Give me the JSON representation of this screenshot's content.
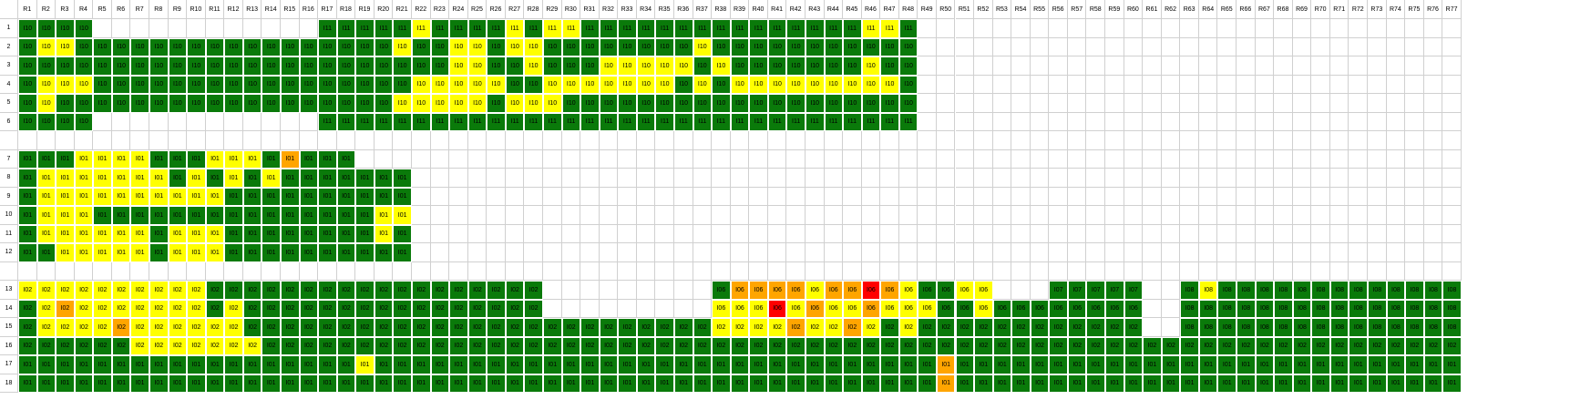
{
  "colors": {
    "G": "#0a7a0a",
    "Y": "#ffff00",
    "O": "#ffa500",
    "R": "#ff0000"
  },
  "columns": [
    "R1",
    "R2",
    "R3",
    "R4",
    "R5",
    "R6",
    "R7",
    "R8",
    "R9",
    "R10",
    "R11",
    "R12",
    "R13",
    "R14",
    "R15",
    "R16",
    "R17",
    "R18",
    "R19",
    "R20",
    "R21",
    "R22",
    "R23",
    "R24",
    "R25",
    "R26",
    "R27",
    "R28",
    "R29",
    "R30",
    "R31",
    "R32",
    "R33",
    "R34",
    "R35",
    "R36",
    "R37",
    "R38",
    "R39",
    "R40",
    "R41",
    "R42",
    "R43",
    "R44",
    "R45",
    "R46",
    "R47",
    "R48",
    "R49",
    "R50",
    "R51",
    "R52",
    "R53",
    "R54",
    "R55",
    "R56",
    "R57",
    "R58",
    "R59",
    "R60",
    "R61",
    "R62",
    "R63",
    "R64",
    "R65",
    "R66",
    "R67",
    "R68",
    "R69",
    "R70",
    "R71",
    "R72",
    "R73",
    "R74",
    "R75",
    "R76",
    "R77"
  ],
  "rows": [
    {
      "label": "1",
      "segments": [
        {
          "start": 1,
          "end": 4,
          "code": "I10",
          "colors": "GGGG"
        },
        {
          "start": 17,
          "end": 48,
          "code": "I11",
          "colors": "GGGGGYGGGGYGYYGGGGGGGGGGGGGGGYYG"
        }
      ]
    },
    {
      "label": "2",
      "segments": [
        {
          "start": 1,
          "end": 48,
          "code": "I10",
          "colors": "GYYGGGGGGGGGGGGGGGGGYGGYYGYYGGGGGGGGYGGGGGGGGGGG"
        }
      ]
    },
    {
      "label": "3",
      "segments": [
        {
          "start": 1,
          "end": 48,
          "code": "I10",
          "colors": "GGGGGGGGGGGGGGGGGGGGGGGYYGGYGGGYYYYYGYGGGGGGGYGG"
        }
      ]
    },
    {
      "label": "4",
      "segments": [
        {
          "start": 1,
          "end": 48,
          "code": "I10",
          "colors": "GYYYGGGGGGGGGGGGGGGGGYYYYYGGYYYYYYYGYGYYYYYYYYYG"
        }
      ]
    },
    {
      "label": "5",
      "segments": [
        {
          "start": 1,
          "end": 48,
          "code": "I10",
          "colors": "GYGGGGGGGGGGGGGGGGGGYYYYYGYYYGGGGGGGGGGGGGGGGGGG"
        }
      ]
    },
    {
      "label": "6",
      "segments": [
        {
          "start": 1,
          "end": 4,
          "code": "I10",
          "colors": "GGGG"
        },
        {
          "start": 17,
          "end": 48,
          "code": "I11",
          "colors": "GGGGGGGGGGGGGGGGGGGGGGGGGGGGGGGG"
        }
      ]
    },
    {
      "label": "",
      "segments": []
    },
    {
      "label": "7",
      "segments": [
        {
          "start": 1,
          "end": 18,
          "code": "I01",
          "colors": "GGGYYYYGGGYYYGOGGG"
        }
      ]
    },
    {
      "label": "8",
      "segments": [
        {
          "start": 1,
          "end": 21,
          "code": "I01",
          "colors": "GYYYYYYYGYGYGYGGGGGGG"
        }
      ]
    },
    {
      "label": "9",
      "segments": [
        {
          "start": 1,
          "end": 21,
          "code": "I01",
          "colors": "GYYYYYYYYYYGGGGGGGGGG"
        }
      ]
    },
    {
      "label": "10",
      "segments": [
        {
          "start": 1,
          "end": 21,
          "code": "I01",
          "colors": "GYYYGGGGGGGGGGGGGGGYY"
        }
      ]
    },
    {
      "label": "11",
      "segments": [
        {
          "start": 1,
          "end": 21,
          "code": "I01",
          "colors": "GYYYYYYGYYYGGGGGGGGYG"
        }
      ]
    },
    {
      "label": "12",
      "segments": [
        {
          "start": 1,
          "end": 21,
          "code": "I01",
          "colors": "GGYYYYYGYYYGGGGGGGGGG"
        }
      ]
    },
    {
      "label": "",
      "segments": []
    },
    {
      "label": "13",
      "segments": [
        {
          "start": 1,
          "end": 28,
          "code": "I02",
          "colors": "YYYYYYYYYYGGGGGGGGGGGGGGGGGG"
        },
        {
          "start": 38,
          "end": 52,
          "code": "I06",
          "colors": "GOOOOYOOROYGGYY"
        },
        {
          "start": 56,
          "end": 60,
          "code": "I07",
          "colors": "GGGGG"
        },
        {
          "start": 63,
          "end": 77,
          "code": "I08",
          "colors": "GYGGGGGGGGGGGGG"
        }
      ]
    },
    {
      "label": "14",
      "segments": [
        {
          "start": 1,
          "end": 28,
          "code": "I02",
          "colors": "GYOYYYYYYYGYGGGGGGGGGGGGGGGG"
        },
        {
          "start": 38,
          "end": 60,
          "code": "I06",
          "colors": "YYYRYOYYOYYYGGYGGGGGGGG"
        },
        {
          "start": 63,
          "end": 77,
          "code": "I08",
          "colors": "GGGGGGGGGGGGGGG"
        }
      ]
    },
    {
      "label": "15",
      "segments": [
        {
          "start": 1,
          "end": 60,
          "code": "I02",
          "colors": "GYYYYOYYYYYYGGGGGGGGGGGGGGGGGGGGGGGGGYYYYOYYOYGYGGGGGGGGGGGG"
        },
        {
          "start": 63,
          "end": 77,
          "code": "I08",
          "colors": "GGGGGGGGGGGGGGG"
        }
      ]
    },
    {
      "label": "16",
      "segments": [
        {
          "start": 1,
          "end": 77,
          "code": "I02",
          "colors": "GGGGGGYYYYYYYGGGGGGGGGGGGGGGGGGGGGGGGGGGGGGGGGGGGGGGGGGGGGGGGGGGGGGGGGGGGGGGG"
        }
      ]
    },
    {
      "label": "17",
      "segments": [
        {
          "start": 1,
          "end": 77,
          "code": "I01",
          "colors": "GGGGGGGGGGGGGGGGGGYGGGGGGGGGGGGGGGGGGGGGGGGGGGGGGOGGGGGGGGGGGGGGGGGGGGGGGGGGG"
        }
      ]
    },
    {
      "label": "18",
      "segments": [
        {
          "start": 1,
          "end": 77,
          "code": "I01",
          "colors": "GGGGGGGGGGGGGGGGGGGGGGGGGGGGGGGGGGGGGGGGGGGGGGGGGOGGGGGGGGGGGGGGGGGGGGGGGGGGG"
        }
      ]
    }
  ]
}
